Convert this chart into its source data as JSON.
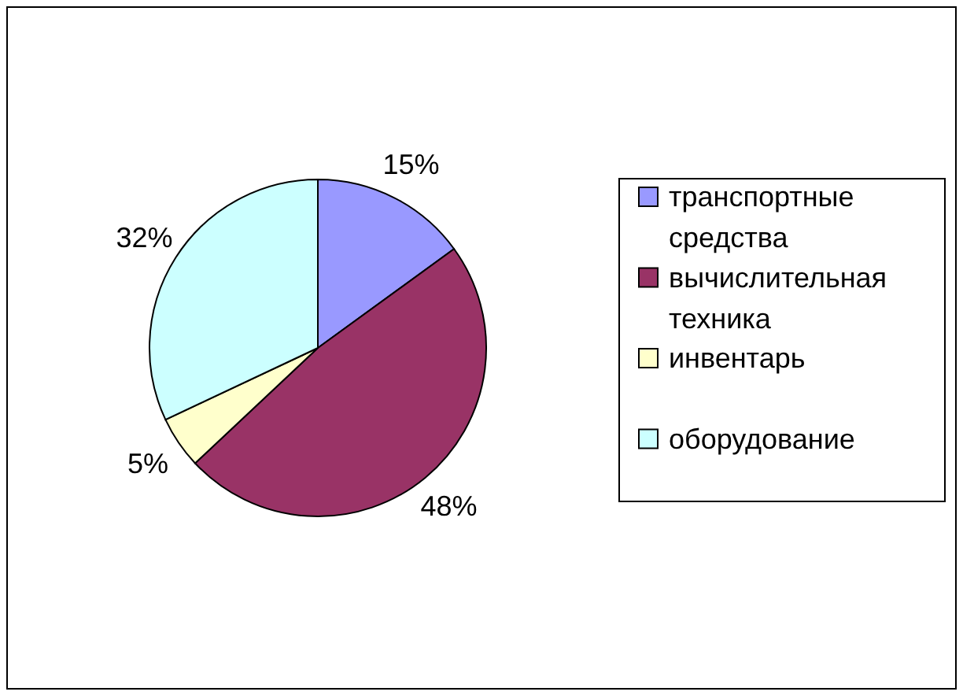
{
  "chart_data": {
    "type": "pie",
    "categories": [
      "транспортные средства",
      "вычислительная техника",
      "инвентарь",
      "оборудование"
    ],
    "values": [
      15,
      48,
      5,
      32
    ],
    "colors": [
      "#9999ff",
      "#993366",
      "#ffffcc",
      "#ccffff"
    ],
    "value_labels": [
      "15%",
      "48%",
      "5%",
      "32%"
    ],
    "legend": "right"
  }
}
